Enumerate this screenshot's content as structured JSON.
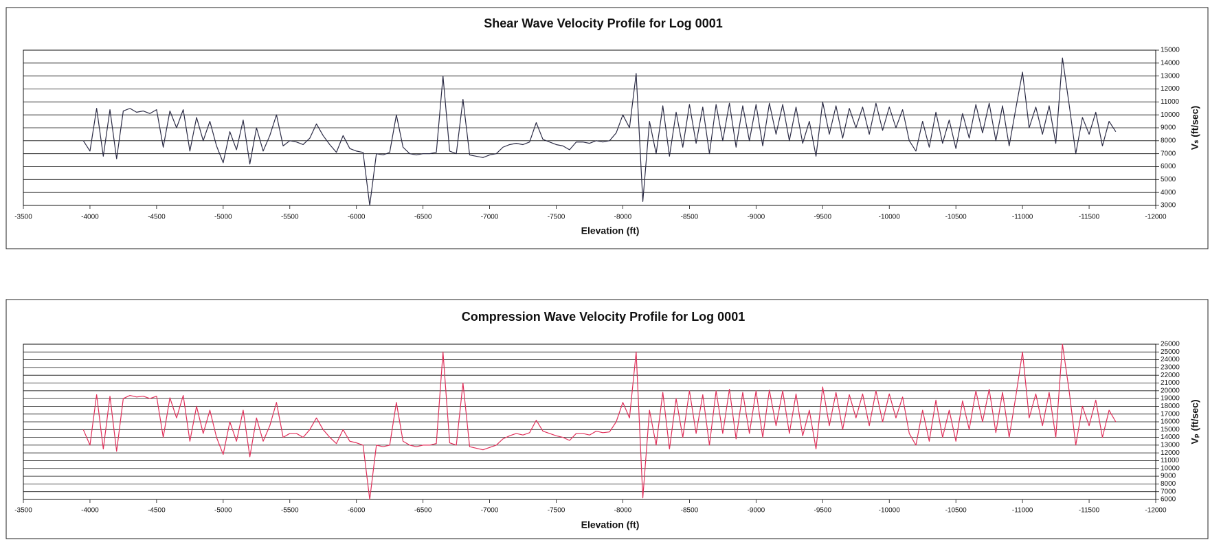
{
  "chart_data": [
    {
      "type": "line",
      "title": "Shear Wave Velocity Profile for Log 0001",
      "x_label": "Elevation (ft)",
      "y_label": "Vₛ (ft/sec)",
      "x": [
        -3950,
        -4000,
        -4050,
        -4100,
        -4150,
        -4200,
        -4250,
        -4300,
        -4350,
        -4400,
        -4450,
        -4500,
        -4550,
        -4600,
        -4650,
        -4700,
        -4750,
        -4800,
        -4850,
        -4900,
        -4950,
        -5000,
        -5050,
        -5100,
        -5150,
        -5200,
        -5250,
        -5300,
        -5350,
        -5400,
        -5450,
        -5500,
        -5550,
        -5600,
        -5650,
        -5700,
        -5750,
        -5800,
        -5850,
        -5900,
        -5950,
        -6000,
        -6050,
        -6100,
        -6150,
        -6200,
        -6250,
        -6300,
        -6350,
        -6400,
        -6450,
        -6500,
        -6550,
        -6600,
        -6650,
        -6700,
        -6750,
        -6800,
        -6850,
        -6900,
        -6950,
        -7000,
        -7050,
        -7100,
        -7150,
        -7200,
        -7250,
        -7300,
        -7350,
        -7400,
        -7450,
        -7500,
        -7550,
        -7600,
        -7650,
        -7700,
        -7750,
        -7800,
        -7850,
        -7900,
        -7950,
        -8000,
        -8050,
        -8100,
        -8150,
        -8200,
        -8250,
        -8300,
        -8350,
        -8400,
        -8450,
        -8500,
        -8550,
        -8600,
        -8650,
        -8700,
        -8750,
        -8800,
        -8850,
        -8900,
        -8950,
        -9000,
        -9050,
        -9100,
        -9150,
        -9200,
        -9250,
        -9300,
        -9350,
        -9400,
        -9450,
        -9500,
        -9550,
        -9600,
        -9650,
        -9700,
        -9750,
        -9800,
        -9850,
        -9900,
        -9950,
        -10000,
        -10050,
        -10100,
        -10150,
        -10200,
        -10250,
        -10300,
        -10350,
        -10400,
        -10450,
        -10500,
        -10550,
        -10600,
        -10650,
        -10700,
        -10750,
        -10800,
        -10850,
        -10900,
        -10950,
        -11000,
        -11050,
        -11100,
        -11150,
        -11200,
        -11250,
        -11300,
        -11350,
        -11400,
        -11450,
        -11500,
        -11550,
        -11600,
        -11650,
        -11700
      ],
      "series": [
        {
          "color": "#2b2b45",
          "values": [
            8000,
            7200,
            10500,
            6800,
            10400,
            6600,
            10300,
            10500,
            10200,
            10300,
            10100,
            10400,
            7500,
            10300,
            9000,
            10400,
            7200,
            9800,
            8000,
            9500,
            7600,
            6300,
            8700,
            7300,
            9600,
            6200,
            9000,
            7200,
            8400,
            10000,
            7600,
            8000,
            7900,
            7700,
            8200,
            9300,
            8400,
            7700,
            7100,
            8400,
            7400,
            7200,
            7100,
            3000,
            7000,
            6900,
            7100,
            10000,
            7500,
            7000,
            6900,
            7000,
            7000,
            7100,
            13000,
            7200,
            7000,
            11200,
            6900,
            6800,
            6700,
            6900,
            7000,
            7500,
            7700,
            7800,
            7700,
            7900,
            9400,
            8100,
            7900,
            7700,
            7600,
            7300,
            7900,
            7900,
            7800,
            8000,
            7900,
            8000,
            8600,
            10000,
            9000,
            13200,
            3300,
            9500,
            7000,
            10700,
            6800,
            10200,
            7500,
            10800,
            7800,
            10600,
            7000,
            10800,
            8000,
            10900,
            7500,
            10700,
            8000,
            10800,
            7600,
            10900,
            8500,
            10800,
            8000,
            10600,
            7800,
            9500,
            6800,
            11000,
            8500,
            10700,
            8200,
            10500,
            9000,
            10600,
            8500,
            10900,
            8800,
            10600,
            9000,
            10400,
            8000,
            7200,
            9500,
            7500,
            10200,
            7800,
            9600,
            7400,
            10100,
            8200,
            10800,
            8600,
            10900,
            8000,
            10700,
            7600,
            10500,
            13300,
            9000,
            10600,
            8500,
            10700,
            7800,
            14400,
            10800,
            7000,
            9800,
            8500,
            10200,
            7600,
            9500,
            8700
          ]
        }
      ],
      "xlim": [
        -3500,
        -12000
      ],
      "xticks": [
        -3500,
        -4000,
        -4500,
        -5000,
        -5500,
        -6000,
        -6500,
        -7000,
        -7500,
        -8000,
        -8500,
        -9000,
        -9500,
        -10000,
        -10500,
        -11000,
        -11500,
        -12000
      ],
      "ylim": [
        3000,
        15000
      ],
      "yticks": [
        3000,
        4000,
        5000,
        6000,
        7000,
        8000,
        9000,
        10000,
        11000,
        12000,
        13000,
        14000,
        15000
      ],
      "grid": true
    },
    {
      "type": "line",
      "title": "Compression Wave Velocity Profile for Log 0001",
      "x_label": "Elevation (ft)",
      "y_label": "Vₚ (ft/sec)",
      "x": [
        -3950,
        -4000,
        -4050,
        -4100,
        -4150,
        -4200,
        -4250,
        -4300,
        -4350,
        -4400,
        -4450,
        -4500,
        -4550,
        -4600,
        -4650,
        -4700,
        -4750,
        -4800,
        -4850,
        -4900,
        -4950,
        -5000,
        -5050,
        -5100,
        -5150,
        -5200,
        -5250,
        -5300,
        -5350,
        -5400,
        -5450,
        -5500,
        -5550,
        -5600,
        -5650,
        -5700,
        -5750,
        -5800,
        -5850,
        -5900,
        -5950,
        -6000,
        -6050,
        -6100,
        -6150,
        -6200,
        -6250,
        -6300,
        -6350,
        -6400,
        -6450,
        -6500,
        -6550,
        -6600,
        -6650,
        -6700,
        -6750,
        -6800,
        -6850,
        -6900,
        -6950,
        -7000,
        -7050,
        -7100,
        -7150,
        -7200,
        -7250,
        -7300,
        -7350,
        -7400,
        -7450,
        -7500,
        -7550,
        -7600,
        -7650,
        -7700,
        -7750,
        -7800,
        -7850,
        -7900,
        -7950,
        -8000,
        -8050,
        -8100,
        -8150,
        -8200,
        -8250,
        -8300,
        -8350,
        -8400,
        -8450,
        -8500,
        -8550,
        -8600,
        -8650,
        -8700,
        -8750,
        -8800,
        -8850,
        -8900,
        -8950,
        -9000,
        -9050,
        -9100,
        -9150,
        -9200,
        -9250,
        -9300,
        -9350,
        -9400,
        -9450,
        -9500,
        -9550,
        -9600,
        -9650,
        -9700,
        -9750,
        -9800,
        -9850,
        -9900,
        -9950,
        -10000,
        -10050,
        -10100,
        -10150,
        -10200,
        -10250,
        -10300,
        -10350,
        -10400,
        -10450,
        -10500,
        -10550,
        -10600,
        -10650,
        -10700,
        -10750,
        -10800,
        -10850,
        -10900,
        -10950,
        -11000,
        -11050,
        -11100,
        -11150,
        -11200,
        -11250,
        -11300,
        -11350,
        -11400,
        -11450,
        -11500,
        -11550,
        -11600,
        -11650,
        -11700
      ],
      "series": [
        {
          "color": "#e0305a",
          "values": [
            15000,
            13000,
            19500,
            12500,
            19300,
            12200,
            19000,
            19400,
            19200,
            19300,
            19000,
            19300,
            14000,
            19100,
            16500,
            19400,
            13500,
            18000,
            14500,
            17500,
            14000,
            11800,
            16000,
            13500,
            17500,
            11500,
            16500,
            13500,
            15500,
            18500,
            14000,
            14500,
            14500,
            14000,
            15000,
            16500,
            15000,
            14000,
            13200,
            15000,
            13500,
            13300,
            13000,
            6000,
            13000,
            12800,
            13000,
            18500,
            13500,
            13000,
            12800,
            13000,
            13000,
            13200,
            25000,
            13300,
            13000,
            21000,
            12800,
            12600,
            12400,
            12700,
            13000,
            13800,
            14200,
            14500,
            14300,
            14600,
            16200,
            14800,
            14500,
            14200,
            14000,
            13600,
            14500,
            14500,
            14300,
            14800,
            14600,
            14700,
            16000,
            18500,
            16500,
            25000,
            6200,
            17500,
            13000,
            19800,
            12500,
            19000,
            14000,
            20000,
            14500,
            19500,
            13000,
            20000,
            14500,
            20200,
            13800,
            19800,
            14500,
            20000,
            14000,
            20100,
            15500,
            20000,
            14500,
            19600,
            14200,
            17500,
            12500,
            20500,
            15500,
            19800,
            15000,
            19500,
            16500,
            19600,
            15500,
            20000,
            16000,
            19600,
            16500,
            19200,
            14500,
            13000,
            17500,
            13500,
            18800,
            14000,
            17500,
            13500,
            18700,
            15000,
            20000,
            16000,
            20200,
            14600,
            19800,
            14000,
            19300,
            25000,
            16500,
            19600,
            15500,
            19800,
            14000,
            26000,
            20000,
            13000,
            18000,
            15500,
            18800,
            14000,
            17500,
            16000
          ]
        }
      ],
      "xlim": [
        -3500,
        -12000
      ],
      "xticks": [
        -3500,
        -4000,
        -4500,
        -5000,
        -5500,
        -6000,
        -6500,
        -7000,
        -7500,
        -8000,
        -8500,
        -9000,
        -9500,
        -10000,
        -10500,
        -11000,
        -11500,
        -12000
      ],
      "ylim": [
        6000,
        26000
      ],
      "yticks": [
        6000,
        7000,
        8000,
        9000,
        10000,
        11000,
        12000,
        13000,
        14000,
        15000,
        16000,
        17000,
        18000,
        19000,
        20000,
        21000,
        22000,
        23000,
        24000,
        25000,
        26000
      ],
      "grid": true
    }
  ]
}
